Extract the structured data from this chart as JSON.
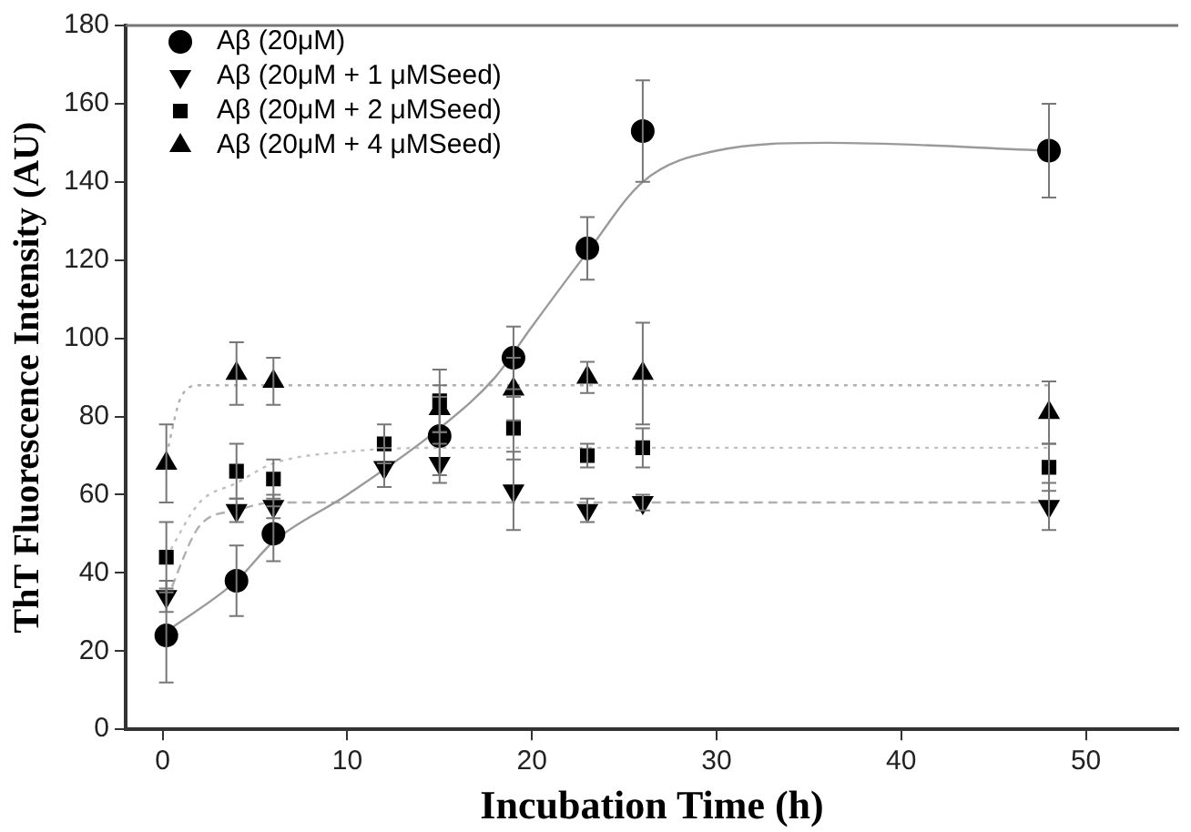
{
  "chart_data": {
    "type": "scatter",
    "xlabel": "Incubation Time (h)",
    "ylabel": "ThT Fluorescence Intensity (AU)",
    "xlim": [
      -2,
      55
    ],
    "xticks": [
      0,
      10,
      20,
      30,
      40,
      50
    ],
    "ylim": [
      0,
      180
    ],
    "yticks": [
      0,
      20,
      40,
      60,
      80,
      100,
      120,
      140,
      160,
      180
    ],
    "grid": false,
    "legend": "top left",
    "series": [
      {
        "name": "Aβ (20μM)",
        "color": "#000000",
        "marker": "circle",
        "x": [
          0.2,
          4,
          6,
          15,
          19,
          23,
          26,
          48
        ],
        "values": [
          24,
          38,
          50,
          75,
          95,
          123,
          153,
          148
        ],
        "errors": [
          12,
          9,
          7,
          10,
          8,
          8,
          13,
          12
        ]
      },
      {
        "name": "Aβ (20μM + 1 μMSeed)",
        "color": "#000000",
        "marker": "triangle_down",
        "x": [
          0.2,
          4,
          6,
          12,
          15,
          19,
          23,
          26,
          48
        ],
        "values": [
          34,
          56,
          57,
          67,
          68,
          61,
          56,
          58,
          57
        ],
        "errors": [
          4,
          3,
          3,
          5,
          5,
          10,
          3,
          2,
          6
        ]
      },
      {
        "name": "Aβ (20μM + 2 μMSeed)",
        "color": "#000000",
        "marker": "square",
        "x": [
          0.2,
          4,
          6,
          12,
          15,
          19,
          23,
          26,
          48
        ],
        "values": [
          44,
          66,
          64,
          73,
          84,
          77,
          70,
          72,
          67
        ],
        "errors": [
          9,
          7,
          5,
          5,
          8,
          8,
          3,
          5,
          6
        ]
      },
      {
        "name": "Aβ (20μM + 4 μMSeed)",
        "color": "#000000",
        "marker": "triangle",
        "x": [
          0.2,
          4,
          6,
          15,
          19,
          23,
          26,
          48
        ],
        "values": [
          68,
          91,
          89,
          82,
          87,
          90,
          91,
          81
        ],
        "errors": [
          10,
          8,
          6,
          6,
          8,
          4,
          13,
          8
        ]
      },
      {
        "type": "line",
        "color": "#9a9a9a",
        "line_style": "solid",
        "x": [
          0.2,
          4,
          6,
          10,
          15,
          18,
          20,
          23,
          26,
          30,
          36,
          48
        ],
        "values": [
          25,
          38,
          48,
          60,
          77,
          90,
          103,
          122,
          140,
          148,
          150,
          148
        ]
      },
      {
        "type": "line",
        "color": "#b0b0b0",
        "line_style": "dashed",
        "x": [
          0.2,
          2,
          4,
          6,
          48
        ],
        "values": [
          33,
          52,
          56,
          58,
          58
        ]
      },
      {
        "type": "line",
        "color": "#c0c0c0",
        "line_style": "dotted",
        "x": [
          0.2,
          2,
          4,
          6,
          10,
          15,
          48
        ],
        "values": [
          44,
          58,
          63,
          68,
          71,
          72,
          72
        ]
      },
      {
        "type": "line",
        "color": "#b0b0b0",
        "line_style": "dotted",
        "x": [
          0.2,
          1,
          2,
          48
        ],
        "values": [
          70,
          85,
          88,
          88
        ]
      }
    ]
  }
}
